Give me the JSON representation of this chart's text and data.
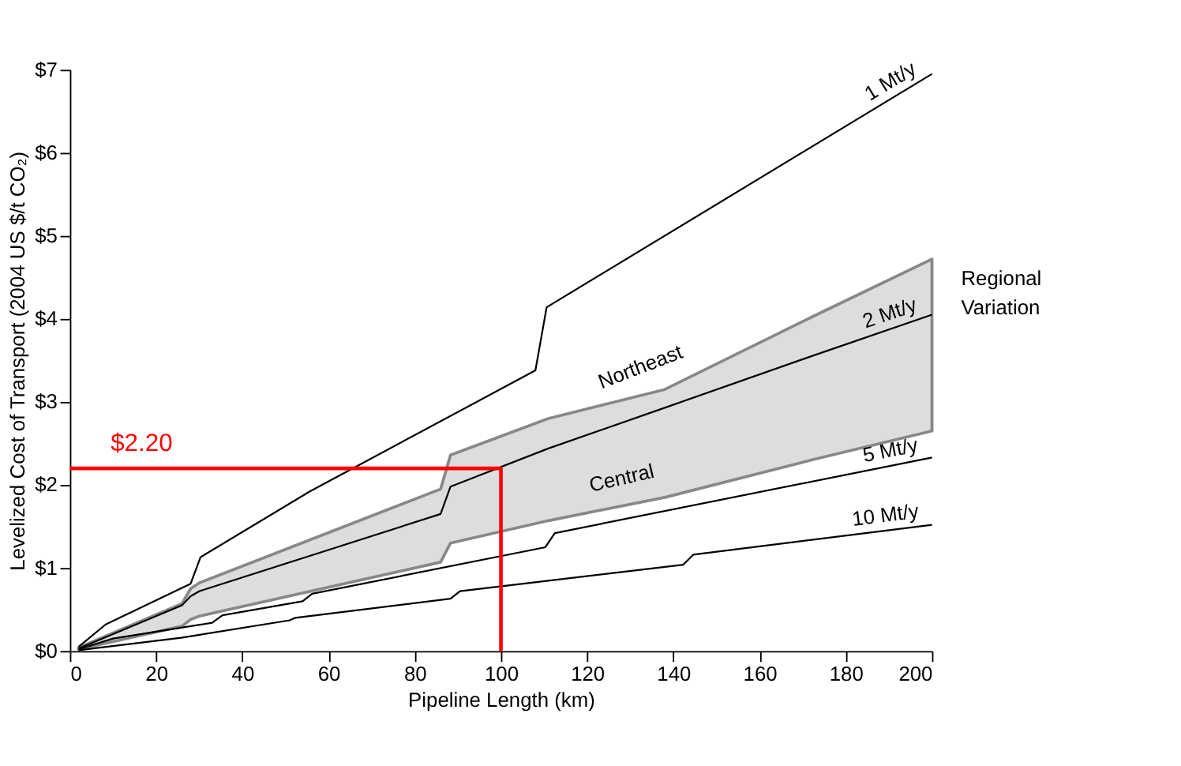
{
  "chart_data": {
    "type": "line",
    "xlabel": "Pipeline Length (km)",
    "ylabel": "Levelized Cost of Transport (2004 US $/t CO₂)",
    "xlim": [
      0,
      200
    ],
    "xticks": [
      0,
      20,
      40,
      60,
      80,
      100,
      120,
      140,
      160,
      180,
      200
    ],
    "ylim": [
      0,
      7
    ],
    "yticks": [
      {
        "value": 0,
        "label": "$0"
      },
      {
        "value": 1,
        "label": "$1"
      },
      {
        "value": 2,
        "label": "$2"
      },
      {
        "value": 3,
        "label": "$3"
      },
      {
        "value": 4,
        "label": "$4"
      },
      {
        "value": 5,
        "label": "$5"
      },
      {
        "value": 6,
        "label": "$6"
      },
      {
        "value": 7,
        "label": "$7"
      }
    ],
    "grid": false,
    "marker": "none",
    "line_style": "solid",
    "series": [
      {
        "name": "1 Mt/y",
        "color": "#000000",
        "x": [
          2,
          8.3,
          28,
          30.3,
          55.6,
          108,
          110.6,
          200
        ],
        "values": [
          0.05,
          0.32,
          0.81,
          1.13,
          1.92,
          3.38,
          4.14,
          6.95
        ]
      },
      {
        "name": "2 Mt/y",
        "color": "#000000",
        "x": [
          2,
          26,
          28,
          30,
          86,
          88.3,
          111,
          138,
          172,
          200
        ],
        "values": [
          0.03,
          0.55,
          0.66,
          0.72,
          1.65,
          1.98,
          2.44,
          2.93,
          3.55,
          4.05
        ],
        "upper": [
          0.04,
          0.57,
          0.75,
          0.82,
          1.95,
          2.36,
          2.8,
          3.15,
          4.02,
          4.72
        ],
        "lower": [
          0.02,
          0.3,
          0.38,
          0.42,
          1.07,
          1.3,
          1.57,
          1.85,
          2.3,
          2.65
        ]
      },
      {
        "name": "5 Mt/y",
        "color": "#000000",
        "x": [
          2,
          10,
          33,
          35.4,
          54,
          56.2,
          110.3,
          112.5,
          200
        ],
        "values": [
          0.02,
          0.15,
          0.34,
          0.43,
          0.6,
          0.69,
          1.25,
          1.42,
          2.33
        ]
      },
      {
        "name": "10 Mt/y",
        "color": "#000000",
        "x": [
          2,
          25.8,
          51,
          52.3,
          88.3,
          90.5,
          142.3,
          144.6,
          200
        ],
        "values": [
          0.01,
          0.16,
          0.37,
          0.4,
          0.63,
          0.72,
          1.04,
          1.16,
          1.52
        ]
      },
      {
        "color": "#ff0000",
        "x": [
          0,
          100,
          100
        ],
        "values": [
          2.2,
          2.2,
          0
        ]
      }
    ],
    "annotations": [
      {
        "text": "$2.20",
        "x": 0,
        "y": 2.2
      },
      {
        "text": "Northeast",
        "x": 134,
        "y": 3.2
      },
      {
        "text": "Central",
        "x": 129,
        "y": 1.85
      },
      "Regional Variation"
    ]
  }
}
